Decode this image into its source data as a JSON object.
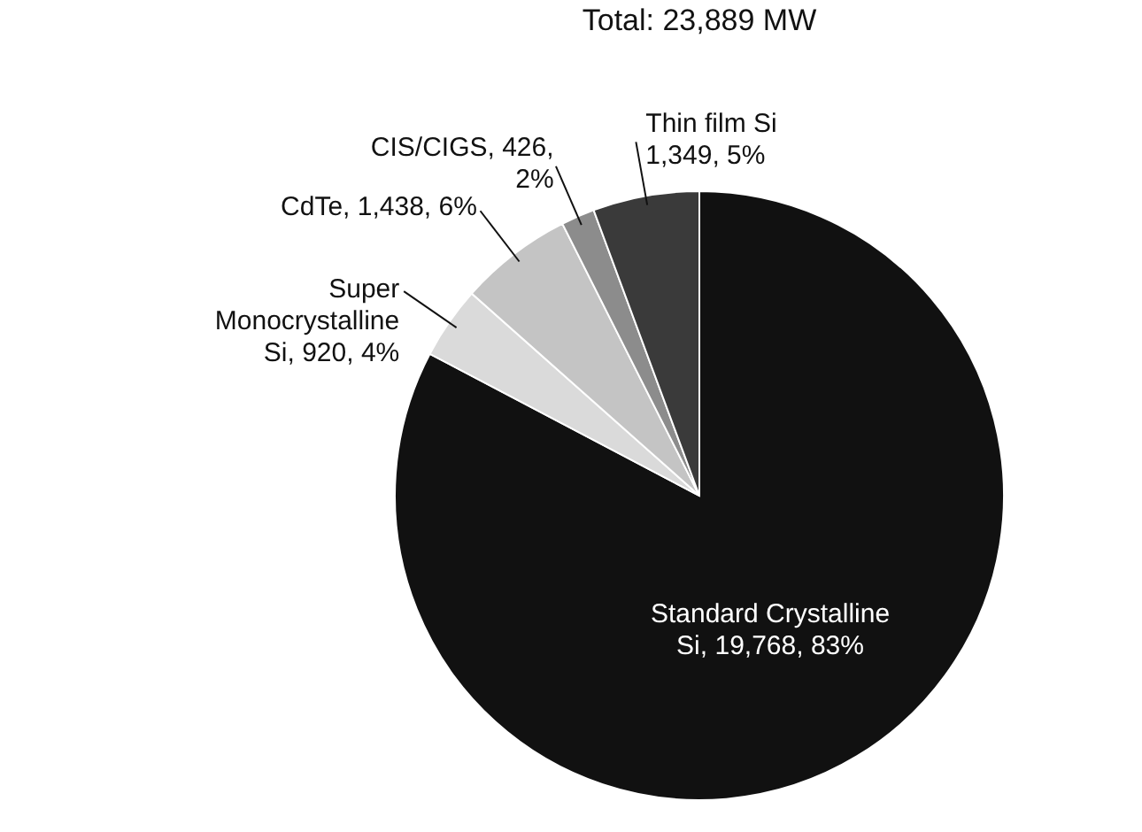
{
  "chart_data": {
    "type": "pie",
    "title": "Total: 23,889 MW",
    "categories": [
      "Standard Crystalline Si",
      "Super Monocrystalline Si",
      "CdTe",
      "CIS/CIGS",
      "Thin film Si"
    ],
    "values": [
      19768,
      920,
      1438,
      426,
      1349
    ],
    "value_labels": [
      "19,768, 83%",
      "920, 4%",
      "1,438, 6%",
      "426, 2%",
      "1,349, 5%"
    ],
    "colors": [
      "#111111",
      "#dadada",
      "#c4c4c4",
      "#8c8c8c",
      "#3a3a3a"
    ]
  }
}
